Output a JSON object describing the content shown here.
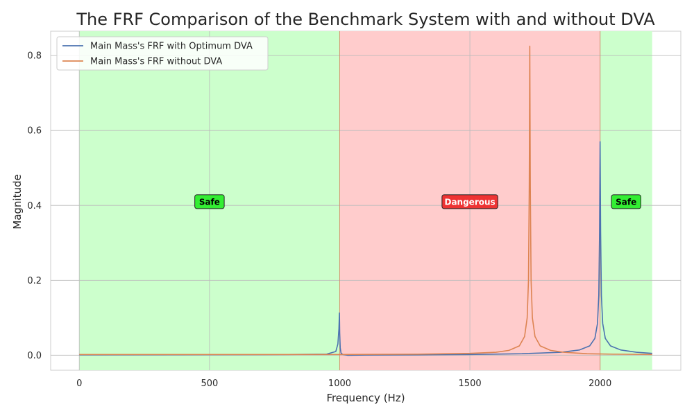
{
  "chart_data": {
    "type": "line",
    "title": "The FRF Comparison of the Benchmark System with and without DVA",
    "xlabel": "Frequency (Hz)",
    "ylabel": "Magnitude",
    "xlim": [
      -110,
      2310
    ],
    "ylim": [
      -0.04,
      0.865
    ],
    "xticks": [
      0,
      500,
      1000,
      1500,
      2000
    ],
    "yticks": [
      0.0,
      0.2,
      0.4,
      0.6,
      0.8
    ],
    "xtick_labels": [
      "0",
      "500",
      "1000",
      "1500",
      "2000"
    ],
    "ytick_labels": [
      "0.0",
      "0.2",
      "0.4",
      "0.6",
      "0.8"
    ],
    "grid": true,
    "legend_position": "top-left",
    "regions": [
      {
        "label": "Safe",
        "x_start": 0,
        "x_end": 1000,
        "color": "#ccffcc",
        "label_x": 500,
        "label_y": 0.41,
        "badge_color": "#33ee33",
        "text_color": "#000000"
      },
      {
        "label": "Dangerous",
        "x_start": 1000,
        "x_end": 2000,
        "color": "#ffcccc",
        "label_x": 1500,
        "label_y": 0.41,
        "badge_color": "#ee3333",
        "text_color": "#ffffff"
      },
      {
        "label": "Safe",
        "x_start": 2000,
        "x_end": 2200,
        "color": "#ccffcc",
        "label_x": 2100,
        "label_y": 0.41,
        "badge_color": "#33ee33",
        "text_color": "#000000"
      }
    ],
    "series": [
      {
        "name": "Main Mass's FRF with Optimum DVA",
        "color": "#4c72b0",
        "points": [
          [
            0,
            0.001
          ],
          [
            500,
            0.0015
          ],
          [
            800,
            0.002
          ],
          [
            950,
            0.003
          ],
          [
            985,
            0.01
          ],
          [
            993,
            0.03
          ],
          [
            997,
            0.07
          ],
          [
            999,
            0.113
          ],
          [
            1000,
            0.06
          ],
          [
            1002,
            0.02
          ],
          [
            1005,
            0.006
          ],
          [
            1012,
            0.002
          ],
          [
            1030,
            0.0
          ],
          [
            1100,
            0.0005
          ],
          [
            1300,
            0.001
          ],
          [
            1500,
            0.002
          ],
          [
            1700,
            0.004
          ],
          [
            1850,
            0.008
          ],
          [
            1920,
            0.014
          ],
          [
            1960,
            0.025
          ],
          [
            1980,
            0.045
          ],
          [
            1990,
            0.085
          ],
          [
            1995,
            0.16
          ],
          [
            1998,
            0.33
          ],
          [
            2000,
            0.57
          ],
          [
            2002,
            0.33
          ],
          [
            2005,
            0.16
          ],
          [
            2010,
            0.085
          ],
          [
            2020,
            0.045
          ],
          [
            2040,
            0.025
          ],
          [
            2080,
            0.014
          ],
          [
            2140,
            0.008
          ],
          [
            2200,
            0.005
          ]
        ]
      },
      {
        "name": "Main Mass's FRF without DVA",
        "color": "#dd8452",
        "points": [
          [
            0,
            0.002
          ],
          [
            500,
            0.002
          ],
          [
            1000,
            0.002
          ],
          [
            1300,
            0.003
          ],
          [
            1500,
            0.005
          ],
          [
            1600,
            0.008
          ],
          [
            1650,
            0.013
          ],
          [
            1690,
            0.025
          ],
          [
            1710,
            0.05
          ],
          [
            1720,
            0.1
          ],
          [
            1725,
            0.2
          ],
          [
            1728,
            0.45
          ],
          [
            1730,
            0.825
          ],
          [
            1732,
            0.45
          ],
          [
            1735,
            0.2
          ],
          [
            1740,
            0.1
          ],
          [
            1750,
            0.05
          ],
          [
            1770,
            0.025
          ],
          [
            1810,
            0.013
          ],
          [
            1860,
            0.008
          ],
          [
            1950,
            0.004
          ],
          [
            2050,
            0.003
          ],
          [
            2200,
            0.002
          ]
        ]
      }
    ]
  }
}
